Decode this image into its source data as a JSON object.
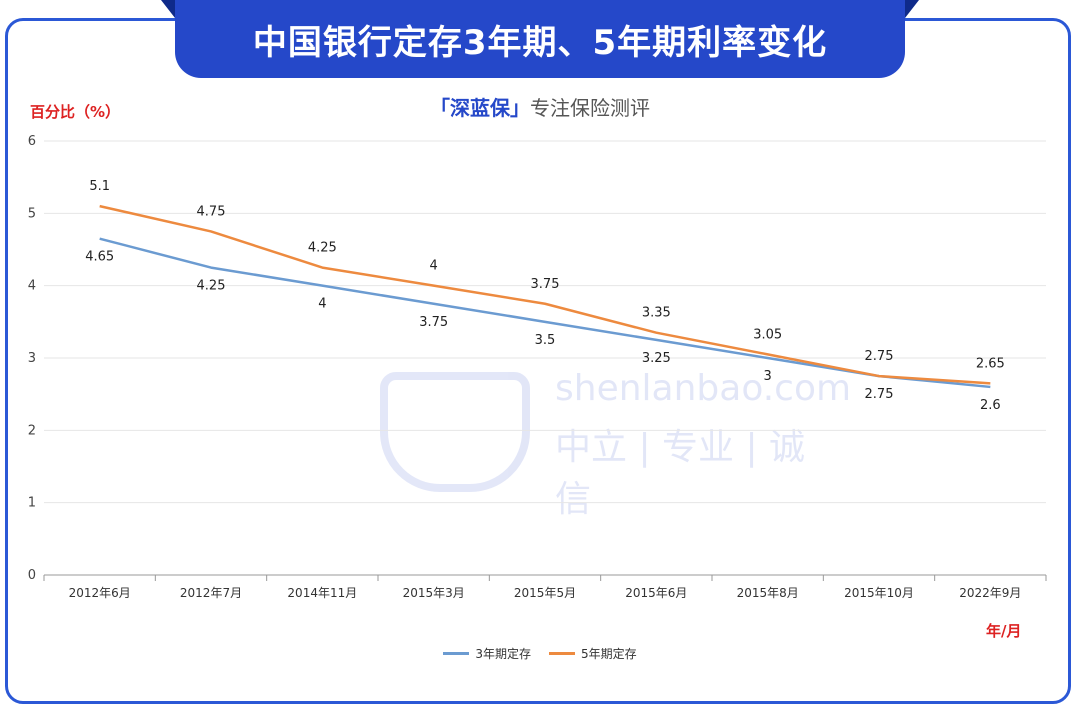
{
  "header": {
    "title": "中国银行定存3年期、5年期利率变化",
    "subtitle_brand": "「深蓝保」",
    "subtitle_rest": "专注保险测评"
  },
  "watermark": {
    "logo_text": "深蓝保",
    "line1": "shenlanbao.com",
    "line2": "中立 | 专业 | 诚信"
  },
  "colors": {
    "series_3yr": "#6b9bd1",
    "series_5yr": "#ed8a3f",
    "banner": "#2548c9",
    "axis_label": "#dd2222"
  },
  "chart_data": {
    "type": "line",
    "title": "中国银行定存3年期、5年期利率变化",
    "ylabel": "百分比（%）",
    "xlabel": "年/月",
    "ylim": [
      0,
      6
    ],
    "yticks": [
      0,
      1,
      2,
      3,
      4,
      5,
      6
    ],
    "grid": true,
    "legend_position": "bottom",
    "categories": [
      "2012年6月",
      "2012年7月",
      "2014年11月",
      "2015年3月",
      "2015年5月",
      "2015年6月",
      "2015年8月",
      "2015年10月",
      "2022年9月"
    ],
    "series": [
      {
        "name": "3年期定存",
        "values": [
          4.65,
          4.25,
          4,
          3.75,
          3.5,
          3.25,
          3,
          2.75,
          2.6
        ]
      },
      {
        "name": "5年期定存",
        "values": [
          5.1,
          4.75,
          4.25,
          4,
          3.75,
          3.35,
          3.05,
          2.75,
          2.65
        ]
      }
    ]
  }
}
